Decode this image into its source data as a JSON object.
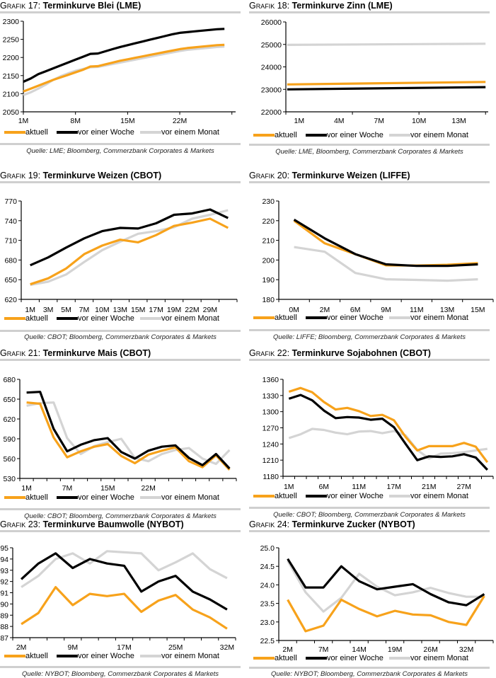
{
  "legend_labels": [
    "aktuell",
    "vor einer Woche",
    "vor einem Monat"
  ],
  "series_colors": {
    "aktuell": "#F7A21B",
    "vor einer Woche": "#000000",
    "vor einem Monat": "#D4D4D4"
  },
  "chart_data": [
    {
      "id": "grafik17",
      "type": "line",
      "prefix": "Grafik 17:",
      "title": "Terminkurve Blei (LME)",
      "source": "Quelle: LME; Bloomberg, Commerzbank Corporates & Markets",
      "ylim": [
        2050,
        2300
      ],
      "yticks": [
        2050,
        2100,
        2150,
        2200,
        2250,
        2300
      ],
      "xlim": [
        1,
        29.5
      ],
      "xtick_positions": [
        1,
        8,
        15,
        22
      ],
      "xtick_labels": [
        "1M",
        "8M",
        "15M",
        "22M"
      ],
      "x": [
        1,
        2,
        3,
        4,
        5,
        6,
        7,
        8,
        9,
        10,
        11,
        12,
        13,
        14,
        15,
        16,
        17,
        18,
        19,
        20,
        21,
        22,
        23,
        24,
        25,
        26,
        27,
        28
      ],
      "series": [
        {
          "name": "aktuell",
          "values": [
            2106,
            2114,
            2122,
            2130,
            2138,
            2145,
            2152,
            2159,
            2166,
            2175,
            2176,
            2181,
            2186,
            2191,
            2195,
            2199,
            2203,
            2207,
            2211,
            2215,
            2219,
            2223,
            2226,
            2228,
            2230,
            2232,
            2234,
            2235
          ]
        },
        {
          "name": "vor einer Woche",
          "values": [
            2133,
            2142,
            2154,
            2162,
            2170,
            2178,
            2186,
            2194,
            2202,
            2210,
            2211,
            2217,
            2223,
            2229,
            2234,
            2239,
            2244,
            2249,
            2254,
            2259,
            2264,
            2268,
            2270,
            2272,
            2274,
            2276,
            2278,
            2279
          ]
        },
        {
          "name": "vor einem Monat",
          "values": [
            2096,
            2104,
            2114,
            2125,
            2138,
            2148,
            2156,
            2163,
            2168,
            2173,
            2174,
            2178,
            2182,
            2186,
            2190,
            2194,
            2198,
            2202,
            2206,
            2210,
            2214,
            2218,
            2221,
            2223,
            2225,
            2227,
            2229,
            2230
          ]
        }
      ]
    },
    {
      "id": "grafik18",
      "type": "line",
      "prefix": "Grafik 18:",
      "title": "Terminkurve Zinn (LME)",
      "source": "Quelle: LME, Bloomberg, Commerzbank Corporates & Markets",
      "ylim": [
        22000,
        26000
      ],
      "yticks": [
        22000,
        23000,
        24000,
        25000,
        26000
      ],
      "xlim": [
        0,
        15.2
      ],
      "xtick_positions": [
        1,
        4,
        7,
        10,
        13
      ],
      "xtick_labels": [
        "1M",
        "4M",
        "7M",
        "10M",
        "13M"
      ],
      "xtick_marks": [
        0,
        5,
        10,
        15
      ],
      "x": [
        0.1,
        15
      ],
      "series": [
        {
          "name": "aktuell",
          "values": [
            23220,
            23330
          ]
        },
        {
          "name": "vor einer Woche",
          "values": [
            23000,
            23100
          ]
        },
        {
          "name": "vor einem Monat",
          "values": [
            24980,
            25030
          ]
        }
      ]
    },
    {
      "id": "grafik19",
      "type": "line",
      "prefix": "Grafik 19:",
      "title": "Terminkurve Weizen (CBOT)",
      "source": "Quelle: CBOT; Bloomberg, Commerzbank Corporates & Markets",
      "ylim": [
        620,
        770
      ],
      "yticks": [
        620,
        650,
        680,
        710,
        740,
        770
      ],
      "xlim": [
        0.5,
        12.5
      ],
      "xtick_positions": [
        1,
        2,
        3,
        4,
        5,
        6,
        7,
        8,
        9,
        10,
        11
      ],
      "xtick_labels": [
        "1M",
        "3M",
        "5M",
        "7M",
        "10M",
        "13M",
        "15M",
        "17M",
        "19M",
        "22M",
        "29M"
      ],
      "x": [
        1,
        2,
        3,
        4,
        5,
        6,
        7,
        8,
        9,
        10,
        11,
        12
      ],
      "series": [
        {
          "name": "aktuell",
          "values": [
            643,
            652,
            667,
            689,
            702,
            711,
            707,
            718,
            732,
            737,
            743,
            729
          ]
        },
        {
          "name": "vor einer Woche",
          "values": [
            672,
            684,
            699,
            713,
            724,
            729,
            728,
            736,
            749,
            751,
            757,
            744
          ]
        },
        {
          "name": "vor einem Monat",
          "values": [
            642,
            647,
            658,
            677,
            695,
            708,
            720,
            724,
            730,
            743,
            749,
            756
          ]
        }
      ]
    },
    {
      "id": "grafik20",
      "type": "line",
      "prefix": "Grafik 20:",
      "title": "Terminkurve Weizen (LIFFE)",
      "source": "Quelle: LIFFE; Bloomberg, Commerzbank Corporates & Markets",
      "ylim": [
        180,
        230
      ],
      "yticks": [
        180,
        190,
        200,
        210,
        220,
        230
      ],
      "xlim": [
        0.5,
        7.5
      ],
      "xtick_positions": [
        1,
        2,
        3,
        4,
        5,
        6,
        7
      ],
      "xtick_labels": [
        "0M",
        "2M",
        "6M",
        "9M",
        "11M",
        "13M",
        "15M"
      ],
      "x": [
        1,
        2,
        3,
        4,
        5,
        6,
        7
      ],
      "series": [
        {
          "name": "aktuell",
          "values": [
            220,
            208.5,
            203,
            197.3,
            197.2,
            197.6,
            198.4
          ]
        },
        {
          "name": "vor einer Woche",
          "values": [
            220.5,
            211,
            203,
            197.8,
            197,
            197,
            197.8
          ]
        },
        {
          "name": "vor einem Monat",
          "values": [
            206.6,
            204.2,
            193.4,
            190.2,
            189.9,
            189.5,
            190.2
          ]
        }
      ]
    },
    {
      "id": "grafik21",
      "type": "line",
      "prefix": "Grafik 21:",
      "title": "Terminkurve Mais (CBOT)",
      "source": "Quelle: CBOT; Bloomberg, Commerzbank Corporates & Markets",
      "ylim": [
        530,
        680
      ],
      "yticks": [
        530,
        560,
        590,
        620,
        650,
        680
      ],
      "xlim": [
        0.5,
        16.5
      ],
      "xtick_positions": [
        1,
        4,
        7,
        10
      ],
      "xtick_labels": [
        "1M",
        "7M",
        "15M",
        "22M"
      ],
      "x": [
        1,
        2,
        3,
        4,
        5,
        6,
        7,
        8,
        9,
        10,
        11,
        12,
        13,
        14,
        15,
        16
      ],
      "series": [
        {
          "name": "aktuell",
          "values": [
            645,
            643,
            592,
            562,
            571,
            578,
            582,
            564,
            553,
            566,
            572,
            577,
            556,
            547,
            565,
            543
          ]
        },
        {
          "name": "vor einer Woche",
          "values": [
            660,
            661,
            605,
            571,
            581,
            588,
            591,
            570,
            560,
            572,
            578,
            580,
            561,
            550,
            567,
            545
          ]
        },
        {
          "name": "vor einem Monat",
          "values": [
            640,
            644,
            645,
            591,
            567,
            579,
            585,
            590,
            561,
            556,
            567,
            573,
            576,
            560,
            552,
            573
          ]
        }
      ]
    },
    {
      "id": "grafik22",
      "type": "line",
      "prefix": "Grafik 22:",
      "title": "Terminkurve Sojabohnen (CBOT)",
      "source": "Quelle: CBOT; Bloomberg, Commerzbank Corporates & Markets",
      "ylim": [
        1180,
        1360
      ],
      "yticks": [
        1180,
        1210,
        1240,
        1270,
        1300,
        1330,
        1360
      ],
      "xlim": [
        0.5,
        18.5
      ],
      "xtick_positions": [
        1,
        4,
        7,
        10,
        13,
        16
      ],
      "xtick_labels": [
        "1M",
        "6M",
        "11M",
        "17M",
        "21M",
        "27M"
      ],
      "x": [
        1,
        2,
        3,
        4,
        5,
        6,
        7,
        8,
        9,
        10,
        11,
        12,
        13,
        14,
        15,
        16,
        17,
        18
      ],
      "series": [
        {
          "name": "aktuell",
          "values": [
            1337,
            1344,
            1336,
            1318,
            1304,
            1307,
            1301,
            1292,
            1294,
            1284,
            1253,
            1228,
            1236,
            1236,
            1236,
            1242,
            1235,
            1206
          ]
        },
        {
          "name": "vor einer Woche",
          "values": [
            1324,
            1331,
            1321,
            1302,
            1288,
            1290,
            1289,
            1285,
            1287,
            1271,
            1240,
            1210,
            1217,
            1216,
            1217,
            1221,
            1215,
            1192
          ]
        },
        {
          "name": "vor einem Monat",
          "values": [
            1251,
            1258,
            1268,
            1266,
            1261,
            1258,
            1263,
            1264,
            1260,
            1264,
            1256,
            1229,
            1213,
            1222,
            1223,
            1225,
            1228,
            1231
          ]
        }
      ]
    },
    {
      "id": "grafik23",
      "type": "line",
      "prefix": "Grafik 23:",
      "title": "Terminkurve Baumwolle (NYBOT)",
      "source": "Quelle: NYBOT; Bloomberg, Commerzbank Corporates & Markets",
      "ylim": [
        87,
        95
      ],
      "yticks": [
        87,
        88,
        89,
        90,
        91,
        92,
        93,
        94,
        95
      ],
      "xlim": [
        0.5,
        13.5
      ],
      "xtick_positions": [
        1,
        4,
        7,
        10,
        13
      ],
      "xtick_labels": [
        "2M",
        "9M",
        "17M",
        "25M",
        "32M"
      ],
      "x": [
        1,
        2,
        3,
        4,
        5,
        6,
        7,
        8,
        9,
        10,
        11,
        12,
        13
      ],
      "series": [
        {
          "name": "aktuell",
          "values": [
            88.2,
            89.2,
            91.5,
            89.9,
            90.9,
            90.7,
            90.9,
            89.3,
            90.3,
            90.8,
            89.5,
            88.8,
            87.8
          ]
        },
        {
          "name": "vor einer Woche",
          "values": [
            92.2,
            93.6,
            94.5,
            93.2,
            94.0,
            93.6,
            93.4,
            91.1,
            92.0,
            92.5,
            91.1,
            90.4,
            89.5
          ]
        },
        {
          "name": "vor einem Monat",
          "values": [
            91.5,
            92.5,
            94.0,
            94.5,
            93.6,
            94.7,
            94.6,
            94.5,
            93.0,
            93.7,
            94.5,
            93.1,
            92.3
          ]
        }
      ]
    },
    {
      "id": "grafik24",
      "type": "line",
      "prefix": "Grafik 24:",
      "title": "Terminkurve Zucker (NYBOT)",
      "source": "Quelle: NYBOT; Bloomberg, Commerzbank Corporates & Markets",
      "ylim": [
        22.5,
        25.0
      ],
      "yticks": [
        22.5,
        23.0,
        23.5,
        24.0,
        24.5,
        25.0
      ],
      "ytick_decimals": 1,
      "xlim": [
        0.5,
        12.5
      ],
      "xtick_positions": [
        1,
        3,
        5,
        7,
        9,
        11
      ],
      "xtick_labels": [
        "2M",
        "7M",
        "14M",
        "19M",
        "26M",
        "32M"
      ],
      "x": [
        1,
        2,
        3,
        4,
        5,
        6,
        7,
        8,
        9,
        10,
        11,
        12
      ],
      "series": [
        {
          "name": "aktuell",
          "values": [
            23.6,
            22.75,
            22.9,
            23.6,
            23.35,
            23.15,
            23.3,
            23.2,
            23.18,
            23.0,
            22.92,
            23.7
          ]
        },
        {
          "name": "vor einer Woche",
          "values": [
            24.7,
            23.93,
            23.93,
            24.5,
            24.1,
            23.88,
            23.95,
            24.02,
            23.75,
            23.53,
            23.45,
            23.75
          ]
        },
        {
          "name": "vor einem Monat",
          "values": [
            24.65,
            23.8,
            23.28,
            23.65,
            24.3,
            23.95,
            23.72,
            23.8,
            23.92,
            23.78,
            23.68,
            23.68
          ]
        }
      ]
    }
  ]
}
